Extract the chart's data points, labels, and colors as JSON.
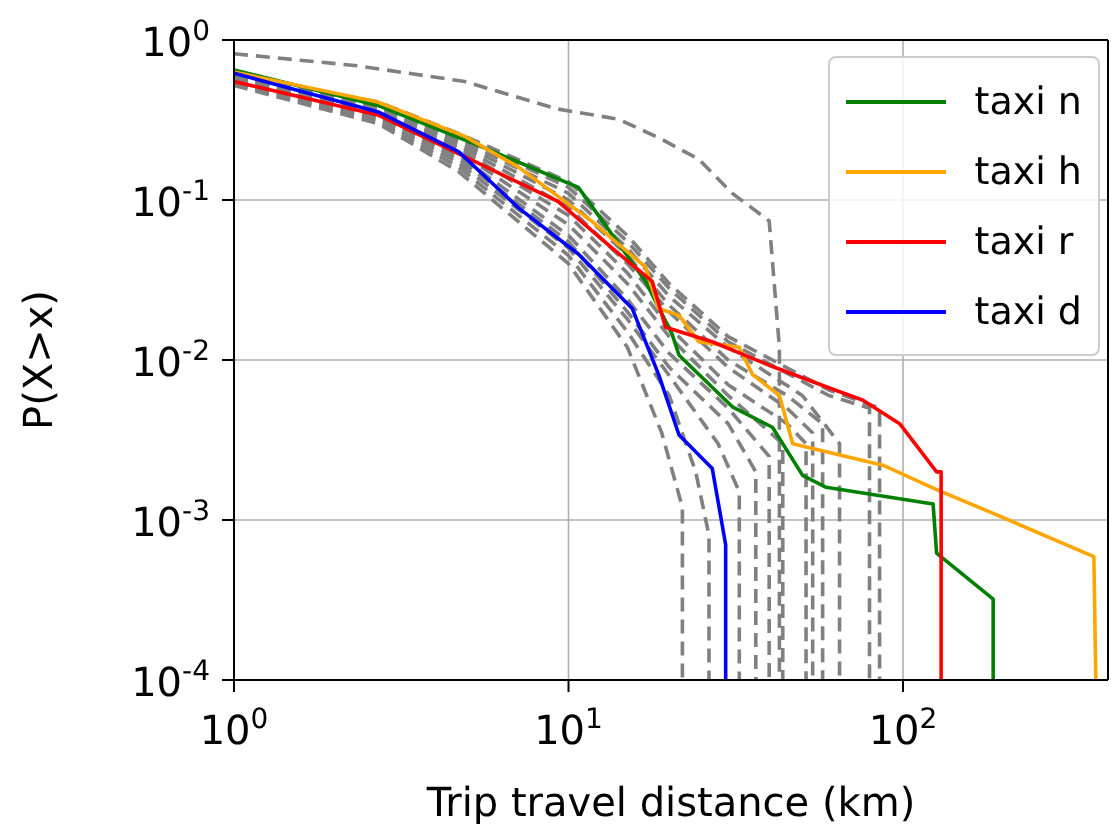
{
  "chart_data": {
    "type": "line",
    "xlabel": "Trip travel distance (km)",
    "ylabel": "P(X>x)",
    "log": "xy",
    "grid": true,
    "legend": "top right",
    "xlim": [
      1,
      410
    ],
    "xticks": [
      {
        "value": 1,
        "label": "10$^{0}$"
      },
      {
        "value": 10,
        "label": "10$^{1}$"
      },
      {
        "value": 100,
        "label": "10$^{2}$"
      }
    ],
    "ylim": [
      0.0001,
      1
    ],
    "yticks": [
      {
        "value": 0.0001,
        "label": "10$^{-4}$"
      },
      {
        "value": 0.001,
        "label": "10$^{-3}$"
      },
      {
        "value": 0.01,
        "label": "10$^{-2}$"
      },
      {
        "value": 0.1,
        "label": "10$^{-1}$"
      },
      {
        "value": 1,
        "label": "10$^{0}$"
      }
    ],
    "series": [
      {
        "color": "#808080",
        "line_style": "dashed",
        "x": [
          1,
          2.34,
          4.9,
          9.3,
          14.1,
          18.6,
          24.5,
          30.9,
          39.8,
          42.7,
          42.7
        ],
        "values": [
          0.82,
          0.69,
          0.55,
          0.37,
          0.32,
          0.245,
          0.18,
          0.11,
          0.074,
          0.012,
          0.0001
        ]
      },
      {
        "color": "#808080",
        "line_style": "dashed",
        "x": [
          1,
          2.7,
          4.7,
          10,
          15,
          19,
          21.9,
          21.9
        ],
        "values": [
          0.52,
          0.3,
          0.15,
          0.04,
          0.012,
          0.0035,
          0.0012,
          0.0001
        ]
      },
      {
        "color": "#808080",
        "line_style": "dashed",
        "x": [
          1,
          2.7,
          4.7,
          10,
          15,
          20,
          24,
          26.3,
          26.3
        ],
        "values": [
          0.53,
          0.31,
          0.16,
          0.045,
          0.015,
          0.006,
          0.002,
          0.0008,
          0.0001
        ]
      },
      {
        "color": "#808080",
        "line_style": "dashed",
        "x": [
          1,
          2.7,
          4.7,
          10,
          15,
          20,
          28,
          32.4,
          32.4
        ],
        "values": [
          0.54,
          0.32,
          0.17,
          0.05,
          0.018,
          0.008,
          0.003,
          0.0015,
          0.0001
        ]
      },
      {
        "color": "#808080",
        "line_style": "dashed",
        "x": [
          1,
          2.7,
          4.7,
          10,
          15,
          20,
          30,
          36.3,
          36.3
        ],
        "values": [
          0.55,
          0.33,
          0.18,
          0.055,
          0.02,
          0.009,
          0.004,
          0.002,
          0.0001
        ]
      },
      {
        "color": "#808080",
        "line_style": "dashed",
        "x": [
          1,
          2.7,
          4.7,
          10,
          15,
          20,
          30,
          39.8,
          39.8
        ],
        "values": [
          0.56,
          0.34,
          0.19,
          0.06,
          0.024,
          0.011,
          0.005,
          0.0025,
          0.0001
        ]
      },
      {
        "color": "#808080",
        "line_style": "dashed",
        "x": [
          1,
          2.7,
          4.7,
          10,
          15,
          20,
          30,
          43.7,
          43.7
        ],
        "values": [
          0.55,
          0.35,
          0.2,
          0.07,
          0.03,
          0.014,
          0.006,
          0.003,
          0.0001
        ]
      },
      {
        "color": "#808080",
        "line_style": "dashed",
        "x": [
          1,
          2.7,
          4.7,
          10,
          15,
          20,
          30,
          45,
          51.3,
          51.3
        ],
        "values": [
          0.57,
          0.36,
          0.21,
          0.08,
          0.035,
          0.016,
          0.007,
          0.004,
          0.003,
          0.0001
        ]
      },
      {
        "color": "#808080",
        "line_style": "dashed",
        "x": [
          1,
          2.7,
          4.7,
          10,
          15,
          20,
          30,
          45,
          53.7,
          53.7
        ],
        "values": [
          0.58,
          0.37,
          0.22,
          0.09,
          0.04,
          0.02,
          0.009,
          0.005,
          0.0035,
          0.0001
        ]
      },
      {
        "color": "#808080",
        "line_style": "dashed",
        "x": [
          1,
          2.7,
          4.7,
          10,
          15,
          20,
          30,
          45,
          57.5,
          57.5
        ],
        "values": [
          0.58,
          0.38,
          0.23,
          0.1,
          0.045,
          0.022,
          0.01,
          0.006,
          0.004,
          0.0001
        ]
      },
      {
        "color": "#808080",
        "line_style": "dashed",
        "x": [
          1,
          2.7,
          4.7,
          10,
          15,
          20,
          30,
          50,
          64.6,
          64.6
        ],
        "values": [
          0.59,
          0.39,
          0.24,
          0.11,
          0.05,
          0.025,
          0.012,
          0.006,
          0.003,
          0.0001
        ]
      },
      {
        "color": "#808080",
        "line_style": "dashed",
        "x": [
          1,
          2.7,
          4.7,
          10,
          15,
          20,
          30,
          60,
          79.4,
          79.4
        ],
        "values": [
          0.6,
          0.4,
          0.25,
          0.12,
          0.055,
          0.028,
          0.013,
          0.006,
          0.005,
          0.0001
        ]
      },
      {
        "color": "#808080",
        "line_style": "dashed",
        "x": [
          1,
          2.7,
          4.7,
          10,
          15,
          20,
          30,
          60,
          85.1,
          85.1
        ],
        "values": [
          0.6,
          0.41,
          0.26,
          0.13,
          0.06,
          0.03,
          0.014,
          0.0065,
          0.005,
          0.0001
        ]
      },
      {
        "name": "taxi n",
        "color": "#008000",
        "line_style": "solid",
        "x": [
          1,
          2.69,
          5.37,
          10.7,
          17,
          20.4,
          21.4,
          30.9,
          40.7,
          50.1,
          58.9,
          123,
          126,
          186,
          186
        ],
        "values": [
          0.65,
          0.39,
          0.22,
          0.12,
          0.031,
          0.0145,
          0.0107,
          0.0051,
          0.0038,
          0.0019,
          0.0016,
          0.00126,
          0.00062,
          0.00032,
          0.0001
        ]
      },
      {
        "name": "taxi h",
        "color": "#ffa500",
        "line_style": "solid",
        "x": [
          1,
          2.69,
          4.9,
          7.1,
          11.7,
          17,
          18.6,
          21.4,
          24.5,
          32.4,
          35.5,
          42.7,
          46.8,
          87,
          126,
          186,
          372,
          377
        ],
        "values": [
          0.63,
          0.41,
          0.25,
          0.16,
          0.074,
          0.038,
          0.021,
          0.019,
          0.013,
          0.012,
          0.0081,
          0.006,
          0.003,
          0.0022,
          0.00155,
          0.0011,
          0.00059,
          0.0001
        ]
      },
      {
        "name": "taxi r",
        "color": "#ff0000",
        "line_style": "solid",
        "x": [
          1,
          2.69,
          5.37,
          9.3,
          13.5,
          17.8,
          19.5,
          26.9,
          40.7,
          58.9,
          75.9,
          97.7,
          126,
          130,
          130
        ],
        "values": [
          0.55,
          0.34,
          0.17,
          0.098,
          0.05,
          0.031,
          0.016,
          0.013,
          0.0091,
          0.0068,
          0.0056,
          0.004,
          0.002,
          0.002,
          0.0001
        ]
      },
      {
        "name": "taxi d",
        "color": "#0000ff",
        "line_style": "solid",
        "x": [
          1,
          2.7,
          4.7,
          7.1,
          10.7,
          15.5,
          18.6,
          21.4,
          26.9,
          29.5,
          29.5
        ],
        "values": [
          0.62,
          0.355,
          0.2,
          0.089,
          0.046,
          0.021,
          0.0081,
          0.0034,
          0.0021,
          0.0007,
          0.0001
        ]
      }
    ]
  }
}
